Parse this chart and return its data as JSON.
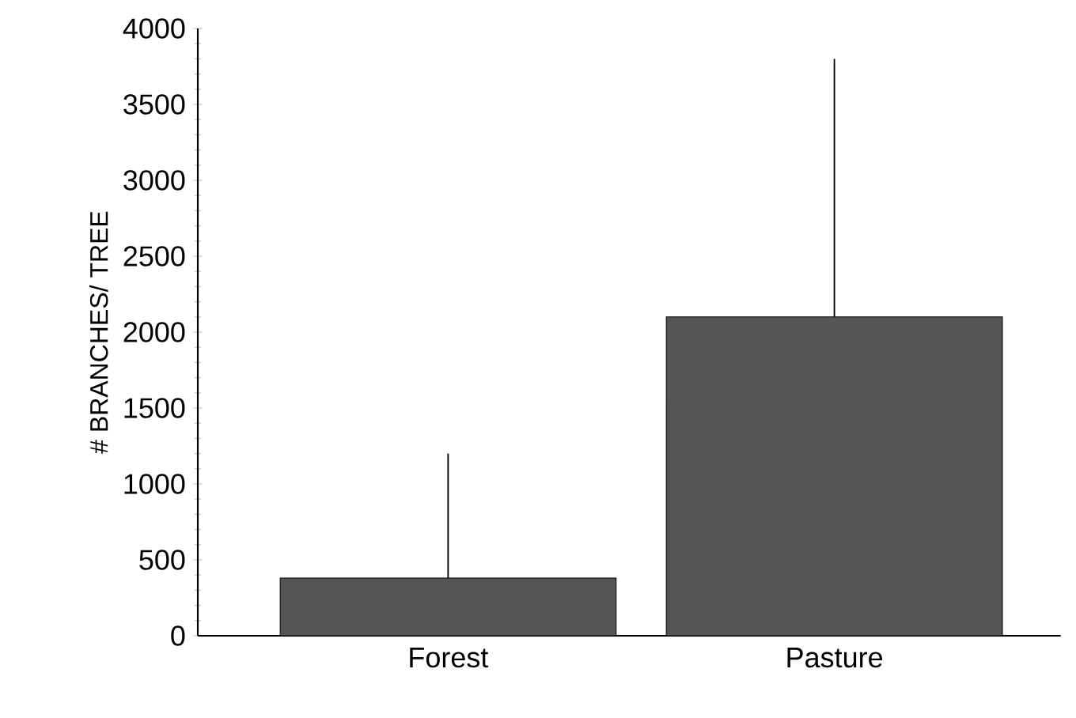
{
  "chart_data": {
    "type": "bar",
    "ylabel": "# BRANCHES/ TREE",
    "categories": [
      "Forest",
      "Pasture"
    ],
    "values": [
      380,
      2100
    ],
    "color": "#555555",
    "errors": [
      [
        380,
        1200
      ],
      [
        2100,
        3800
      ]
    ],
    "ylim": [
      0,
      4000
    ],
    "yticks": [
      0,
      500,
      1000,
      1500,
      2000,
      2500,
      3000,
      3500,
      4000
    ],
    "grid": false
  }
}
